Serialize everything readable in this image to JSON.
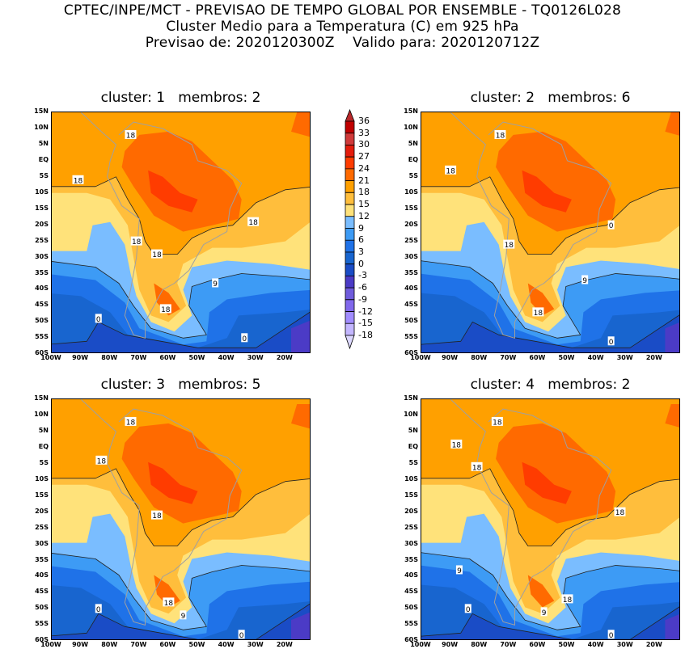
{
  "header": {
    "line1": "CPTEC/INPE/MCT - PREVISAO DE TEMPO GLOBAL POR ENSEMBLE - TQ0126L028",
    "line2": "Cluster Medio para a Temperatura (C) em 925 hPa",
    "line3": "Previsao de: 2020120300Z    Valido para: 2020120712Z"
  },
  "panels": [
    {
      "title": "cluster: 1   membros: 2",
      "contour_labels": [
        "18",
        "18",
        "18",
        "18",
        "18",
        "18",
        "9",
        "0",
        "0"
      ]
    },
    {
      "title": "cluster: 2   membros: 6",
      "contour_labels": [
        "18",
        "18",
        "18",
        "18",
        "9",
        "0",
        "0"
      ]
    },
    {
      "title": "cluster: 3   membros: 5",
      "contour_labels": [
        "18",
        "18",
        "18",
        "18",
        "9",
        "0",
        "0"
      ]
    },
    {
      "title": "cluster: 4   membros: 2",
      "contour_labels": [
        "18",
        "18",
        "18",
        "18",
        "18",
        "9",
        "9",
        "0",
        "0"
      ]
    }
  ],
  "lat_ticks": [
    "15N",
    "10N",
    "5N",
    "EQ",
    "5S",
    "10S",
    "15S",
    "20S",
    "25S",
    "30S",
    "35S",
    "40S",
    "45S",
    "50S",
    "55S",
    "60S"
  ],
  "lon_ticks": [
    "100W",
    "90W",
    "80W",
    "70W",
    "60W",
    "50W",
    "40W",
    "30W",
    "20W"
  ],
  "colorbar": {
    "labels": [
      "36",
      "33",
      "30",
      "27",
      "24",
      "21",
      "18",
      "15",
      "12",
      "9",
      "6",
      "3",
      "0",
      "-3",
      "-6",
      "-9",
      "-12",
      "-15",
      "-18"
    ],
    "colors": [
      "#c00000",
      "#d03a3a",
      "#e41c0c",
      "#ff3c00",
      "#ff6a00",
      "#ffa000",
      "#ffbe3c",
      "#ffe27a",
      "#7abdff",
      "#3d9bf5",
      "#1f72e8",
      "#1865cf",
      "#1a4cc6",
      "#4b3bc6",
      "#6f5bdc",
      "#8168ec",
      "#a18cff",
      "#c3b6ff"
    ],
    "top_arrow": "#b8282a",
    "bottom_arrow": "#dcd8ff"
  },
  "map_colors": {
    "c18_21": "#ffa000",
    "c15_18": "#ffbe3c",
    "c12_15": "#ffe27a",
    "c9_12": "#7abdff",
    "c6_9": "#3d9bf5",
    "c3_6": "#1f72e8",
    "c0_3": "#1865cf",
    "cm3_0": "#1a4cc6",
    "cm6_m3": "#4b3bc6",
    "c21_24": "#ff6a00",
    "c24_27": "#ff3c00",
    "coast": "#a0a0a0"
  }
}
